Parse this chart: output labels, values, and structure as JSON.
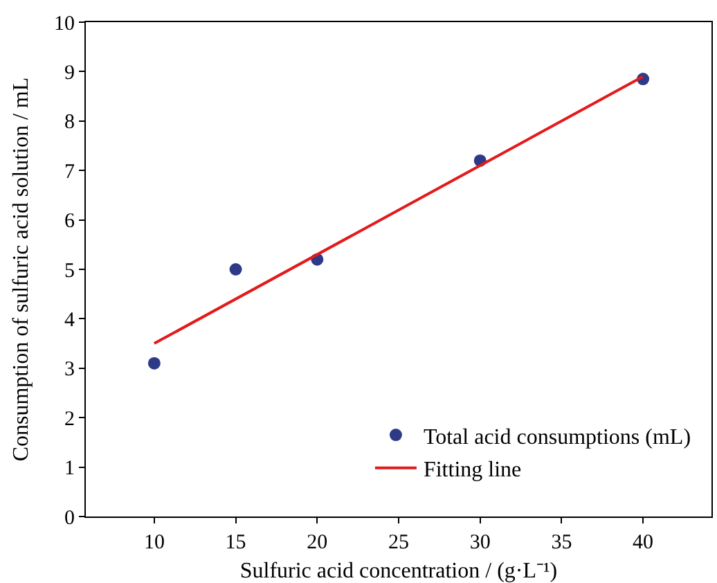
{
  "chart_data": {
    "type": "scatter",
    "xlabel": "Sulfuric acid concentration / (g·L⁻¹)",
    "ylabel": "Consumption of sulfuric acid solution / mL",
    "series": [
      {
        "name": "Total acid consumptions (mL)",
        "marker": "circle",
        "color": "#2e3a87",
        "x": [
          10,
          15,
          20,
          30,
          40
        ],
        "values": [
          3.1,
          5.0,
          5.2,
          7.2,
          8.85
        ]
      },
      {
        "name": "Fitting line",
        "type": "line",
        "marker": "none",
        "color": "#e31a1c",
        "x": [
          10,
          40
        ],
        "values": [
          3.5,
          8.9
        ]
      }
    ],
    "xlim": [
      5.8,
      44.2
    ],
    "xticks": [
      10,
      15,
      20,
      25,
      30,
      35,
      40
    ],
    "ylim": [
      0,
      10
    ],
    "yticks": [
      0,
      1,
      2,
      3,
      4,
      5,
      6,
      7,
      8,
      9,
      10
    ],
    "line_style": "solid",
    "grid": false,
    "legend": "bottom right"
  }
}
